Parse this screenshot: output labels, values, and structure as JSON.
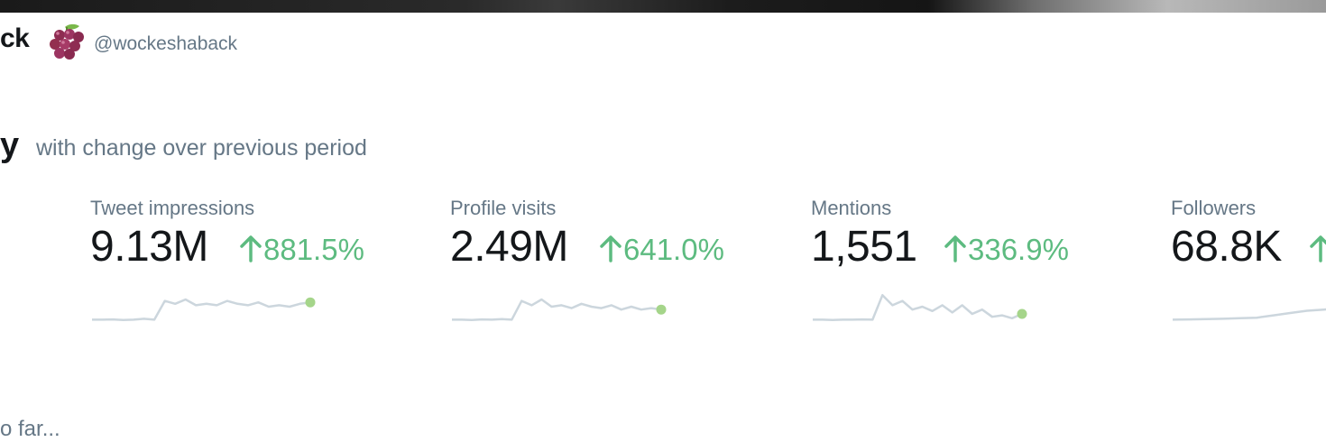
{
  "header": {
    "name_fragment": "ck",
    "emoji_icon": "grapes-emoji-icon",
    "handle": "@wockeshaback"
  },
  "summary": {
    "title_fragment": "y",
    "subtitle": "with change over previous period"
  },
  "colors": {
    "positive": "#5dbb80",
    "sparkline": "#ccd6dd",
    "sparkline_dot": "#a5d58a",
    "muted_text": "#657786",
    "primary_text": "#14171a"
  },
  "metrics": [
    {
      "label": "Tweet impressions",
      "value": "9.13M",
      "change": "881.5%",
      "trend_icon": "arrow-up-icon",
      "sparkline": [
        0.05,
        0.05,
        0.06,
        0.04,
        0.05,
        0.08,
        0.05,
        0.7,
        0.6,
        0.75,
        0.55,
        0.6,
        0.55,
        0.7,
        0.6,
        0.55,
        0.65,
        0.5,
        0.55,
        0.5,
        0.6,
        0.65
      ]
    },
    {
      "label": "Profile visits",
      "value": "2.49M",
      "change": "641.0%",
      "trend_icon": "arrow-up-icon",
      "sparkline": [
        0.05,
        0.05,
        0.04,
        0.06,
        0.05,
        0.07,
        0.05,
        0.7,
        0.55,
        0.75,
        0.5,
        0.55,
        0.45,
        0.6,
        0.5,
        0.45,
        0.55,
        0.4,
        0.5,
        0.4,
        0.45,
        0.4
      ]
    },
    {
      "label": "Mentions",
      "value": "1,551",
      "change": "336.9%",
      "trend_icon": "arrow-up-icon",
      "sparkline": [
        0.05,
        0.05,
        0.04,
        0.05,
        0.05,
        0.06,
        0.05,
        0.9,
        0.55,
        0.7,
        0.4,
        0.5,
        0.35,
        0.55,
        0.3,
        0.55,
        0.25,
        0.4,
        0.15,
        0.2,
        0.1,
        0.25
      ]
    },
    {
      "label": "Followers",
      "value": "68.8K",
      "change": "",
      "trend_icon": "arrow-up-icon",
      "sparkline": [
        0.05,
        0.06,
        0.07,
        0.08,
        0.1,
        0.12,
        0.2,
        0.28,
        0.36,
        0.4,
        0.45,
        0.5,
        0.55,
        0.6
      ]
    }
  ],
  "footer": {
    "text_fragment": "o far..."
  }
}
